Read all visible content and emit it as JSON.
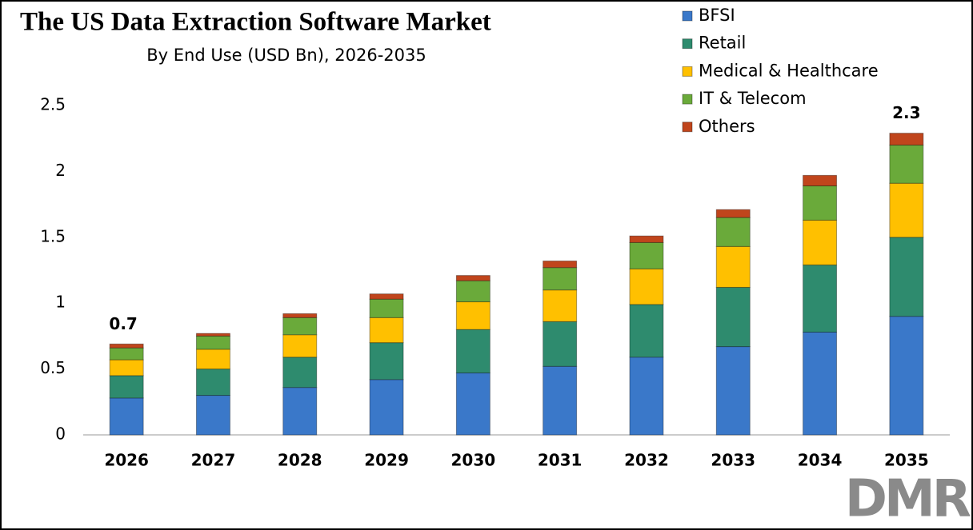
{
  "chart_data": {
    "type": "stacked_bar",
    "title": "The US Data Extraction Software Market",
    "subtitle": "By End Use (USD Bn), 2026-2035",
    "categories": [
      "2026",
      "2027",
      "2028",
      "2029",
      "2030",
      "2031",
      "2032",
      "2033",
      "2034",
      "2035"
    ],
    "series": [
      {
        "name": "BFSI",
        "color": "#3a78c9",
        "values": [
          0.28,
          0.3,
          0.36,
          0.42,
          0.47,
          0.52,
          0.59,
          0.67,
          0.78,
          0.9
        ]
      },
      {
        "name": "Retail",
        "color": "#2e8b6e",
        "values": [
          0.17,
          0.2,
          0.23,
          0.28,
          0.33,
          0.34,
          0.4,
          0.45,
          0.51,
          0.6
        ]
      },
      {
        "name": "Medical & Healthcare",
        "color": "#ffc000",
        "values": [
          0.12,
          0.15,
          0.17,
          0.19,
          0.21,
          0.24,
          0.27,
          0.31,
          0.34,
          0.41
        ]
      },
      {
        "name": "IT & Telecom",
        "color": "#6aaa3a",
        "values": [
          0.09,
          0.1,
          0.13,
          0.14,
          0.16,
          0.17,
          0.2,
          0.22,
          0.26,
          0.29
        ]
      },
      {
        "name": "Others",
        "color": "#c0451c",
        "values": [
          0.03,
          0.02,
          0.03,
          0.04,
          0.04,
          0.05,
          0.05,
          0.06,
          0.08,
          0.09
        ]
      }
    ],
    "totals": [
      0.7,
      null,
      null,
      null,
      null,
      null,
      null,
      null,
      null,
      2.3
    ],
    "ylim": [
      0,
      2.5
    ],
    "yticks": [
      0,
      0.5,
      1,
      1.5,
      2,
      2.5
    ],
    "grid": false,
    "legend": "top-right"
  },
  "logo": "DMR"
}
